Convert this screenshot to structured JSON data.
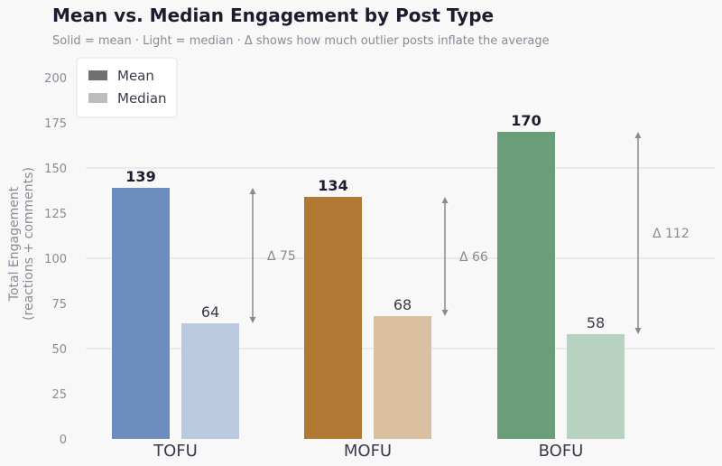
{
  "title": "Mean vs. Median Engagement by Post Type",
  "subtitle": "Solid = mean  ·  Light = median  ·  Δ shows how much outlier posts inflate the average",
  "chart_data": {
    "type": "bar",
    "categories": [
      "TOFU",
      "MOFU",
      "BOFU"
    ],
    "series": [
      {
        "name": "Mean",
        "values": [
          139,
          134,
          170
        ],
        "colors": [
          "#6b8cbd",
          "#b07832",
          "#6a9e78"
        ]
      },
      {
        "name": "Median",
        "values": [
          64,
          68,
          58
        ],
        "colors": [
          "#b9c9de",
          "#dac0a0",
          "#b8d2c2"
        ]
      }
    ],
    "deltas": [
      "Δ 75",
      "Δ 66",
      "Δ 112"
    ],
    "ylabel": "Total Engagement\n(reactions + comments)",
    "xlabel": "",
    "ylim": [
      0,
      210
    ],
    "yticks": [
      0,
      25,
      50,
      75,
      100,
      125,
      150,
      175,
      200
    ],
    "grid": true,
    "legend": {
      "placement": "top-left",
      "entries": [
        {
          "label": "Mean",
          "color": "#707070"
        },
        {
          "label": "Median",
          "color": "#bdbdbd"
        }
      ]
    }
  }
}
